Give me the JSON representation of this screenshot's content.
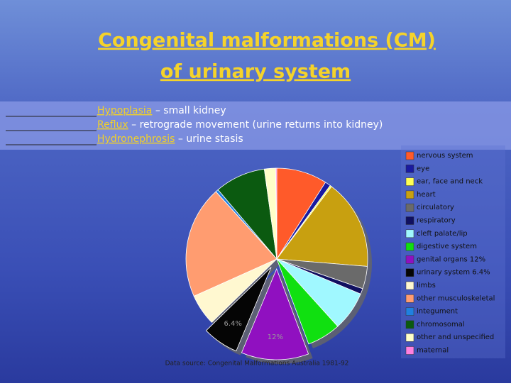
{
  "slide": {
    "title_lines": [
      "Congenital malformations (CM)",
      "of urinary system"
    ],
    "items": [
      {
        "term": "Hypoplasia",
        "text": " – small kidney"
      },
      {
        "term": "Reflux",
        "text": " – retrograde movement (urine returns into kidney)"
      },
      {
        "term": "Hydronephrosis",
        "text": " – urine stasis"
      }
    ]
  },
  "chart_data": {
    "type": "pie",
    "categories": [
      "nervous system",
      "eye",
      "ear, face and neck",
      "heart",
      "circulatory",
      "respiratory",
      "cleft palate/lip",
      "digestive system",
      "genital organs 12%",
      "urinary system 6.4%",
      "limbs",
      "other musculoskeletal",
      "integument",
      "chromosomal",
      "other and unspecified",
      "maternal"
    ],
    "values": [
      9,
      1,
      0.3,
      16,
      4,
      1,
      7,
      6,
      12,
      6.4,
      5.6,
      20,
      0.5,
      9,
      2,
      0.2
    ],
    "value_labels": [
      null,
      null,
      null,
      null,
      null,
      null,
      null,
      null,
      "12%",
      "6.4%",
      null,
      null,
      null,
      null,
      null,
      null
    ],
    "colors": [
      "#ff5a2a",
      "#1a1aa0",
      "#ffff55",
      "#c8a010",
      "#6a6a6a",
      "#101060",
      "#a0f8ff",
      "#10e010",
      "#9010c0",
      "#050505",
      "#fff8d0",
      "#ff9c70",
      "#2080e0",
      "#0b5a10",
      "#ffffc8",
      "#ff80e0"
    ],
    "note": "Data source: Congenital Malformations Australia 1981-92",
    "legend": "right"
  }
}
